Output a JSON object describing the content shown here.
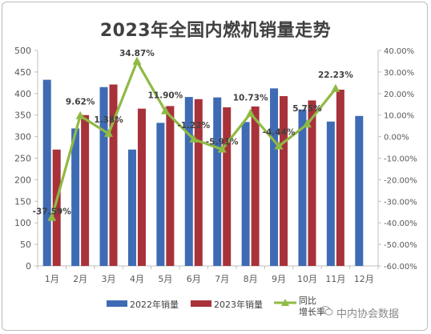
{
  "chart_data": {
    "type": "bar",
    "title": "2023年全国内燃机销量走势",
    "categories": [
      "1月",
      "2月",
      "3月",
      "4月",
      "5月",
      "6月",
      "7月",
      "8月",
      "9月",
      "10月",
      "11月",
      "12月"
    ],
    "ylim": [
      0,
      500
    ],
    "yticks": [
      "0",
      "50",
      "100",
      "150",
      "200",
      "250",
      "300",
      "350",
      "400",
      "450",
      "500"
    ],
    "y2lim": [
      -60,
      40
    ],
    "y2ticks": [
      "-60.00%",
      "-50.00%",
      "-40.00%",
      "-30.00%",
      "-20.00%",
      "-10.00%",
      "0.00%",
      "10.00%",
      "20.00%",
      "30.00%",
      "40.00%"
    ],
    "series": [
      {
        "name": "2022年销量",
        "type": "bar",
        "color": "#3e6bb4",
        "values": [
          432,
          319,
          415,
          270,
          332,
          392,
          391,
          334,
          412,
          363,
          335,
          348
        ]
      },
      {
        "name": "2023年销量",
        "type": "bar",
        "color": "#a8323a",
        "values": [
          270,
          350,
          421,
          365,
          371,
          387,
          368,
          370,
          394,
          384,
          409,
          null
        ]
      },
      {
        "name": "同比增长率",
        "type": "line",
        "axis": "right",
        "color": "#8fba44",
        "values": [
          -37.59,
          9.62,
          1.38,
          34.87,
          11.9,
          -1.22,
          -5.91,
          10.73,
          -4.44,
          5.75,
          22.23,
          null
        ],
        "labels": [
          "-37.59%",
          "9.62%",
          "1.38%",
          "34.87%",
          "11.90%",
          "-1.22%",
          "-5.91%",
          "10.73%",
          "-4.44%",
          "5.75%",
          "22.23%",
          ""
        ]
      }
    ],
    "legend_position": "bottom",
    "grid": false
  },
  "legend": {
    "bar2022": "2022年销量",
    "bar2023": "2023年销量",
    "line_top": "同比",
    "line_bottom": "增长率"
  },
  "watermark": "中内协会数据"
}
